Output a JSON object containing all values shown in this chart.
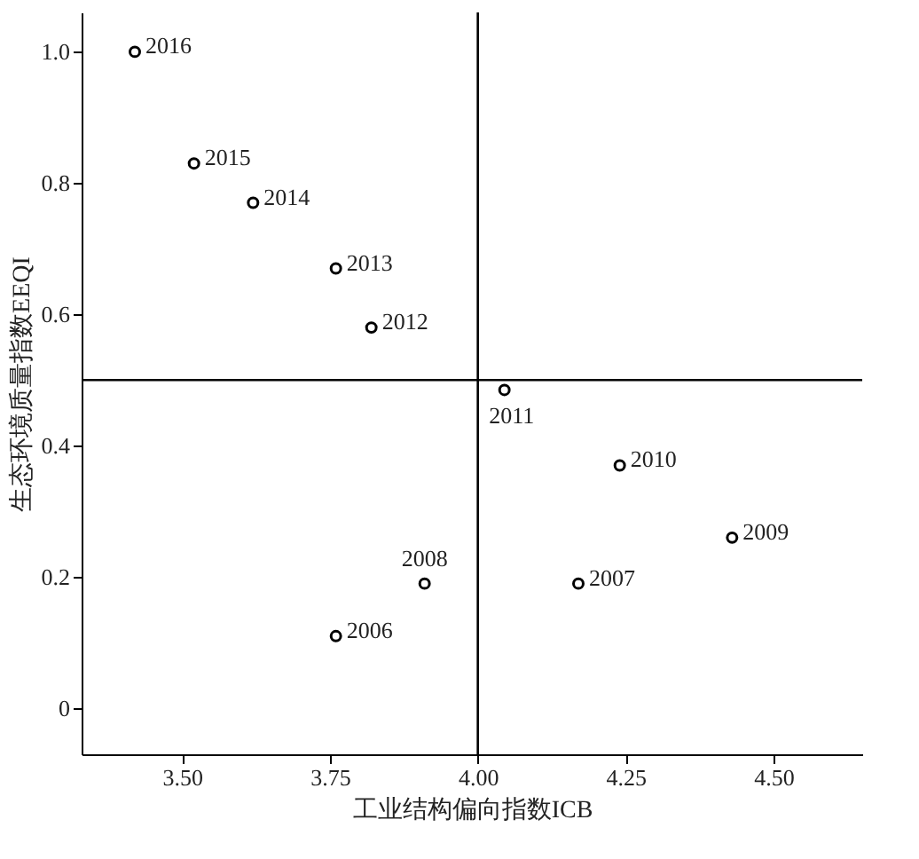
{
  "chart_data": {
    "type": "scatter",
    "xlabel": "工业结构偏向指数ICB",
    "ylabel": "生态环境质量指数EEQI",
    "x": [
      3.42,
      3.52,
      3.62,
      3.76,
      3.82,
      4.045,
      4.24,
      4.43,
      4.17,
      3.91,
      3.76
    ],
    "series": [
      {
        "color": "#000000",
        "values": [
          1.0,
          0.83,
          0.77,
          0.67,
          0.58,
          0.485,
          0.37,
          0.26,
          0.19,
          0.19,
          0.11
        ]
      }
    ],
    "annotations": [
      {
        "text": "2016",
        "x": 3.42,
        "y": 1.0
      },
      {
        "text": "2015",
        "x": 3.52,
        "y": 0.83
      },
      {
        "text": "2014",
        "x": 3.62,
        "y": 0.77
      },
      {
        "text": "2013",
        "x": 3.76,
        "y": 0.67
      },
      {
        "text": "2012",
        "x": 3.82,
        "y": 0.58
      },
      {
        "text": "2011",
        "x": 4.045,
        "y": 0.485
      },
      {
        "text": "2010",
        "x": 4.24,
        "y": 0.37
      },
      {
        "text": "2009",
        "x": 4.43,
        "y": 0.26
      },
      {
        "text": "2007",
        "x": 4.17,
        "y": 0.19
      },
      {
        "text": "2008",
        "x": 3.91,
        "y": 0.19
      },
      {
        "text": "2006",
        "x": 3.76,
        "y": 0.11
      }
    ],
    "xlim": [
      3.33,
      4.65
    ],
    "ylim": [
      -0.07,
      1.06
    ],
    "xticks": [
      {
        "value": 3.5,
        "label": "3.50"
      },
      {
        "value": 3.75,
        "label": "3.75"
      },
      {
        "value": 4.0,
        "label": "4.00"
      },
      {
        "value": 4.25,
        "label": "4.25"
      },
      {
        "value": 4.5,
        "label": "4.50"
      }
    ],
    "yticks": [
      0,
      {
        "value": 0.2,
        "label": "0.2"
      },
      {
        "value": 0.4,
        "label": "0.4"
      },
      {
        "value": 0.6,
        "label": "0.6"
      },
      {
        "value": 0.8,
        "label": "0.8"
      },
      {
        "value": 1.0,
        "label": "1.0"
      }
    ],
    "ref_lines": [
      {
        "axis": "x",
        "value": 4.0,
        "color": "#000000"
      },
      {
        "axis": "y",
        "value": 0.5,
        "color": "#000000"
      }
    ],
    "marker": "circle",
    "grid": false
  }
}
